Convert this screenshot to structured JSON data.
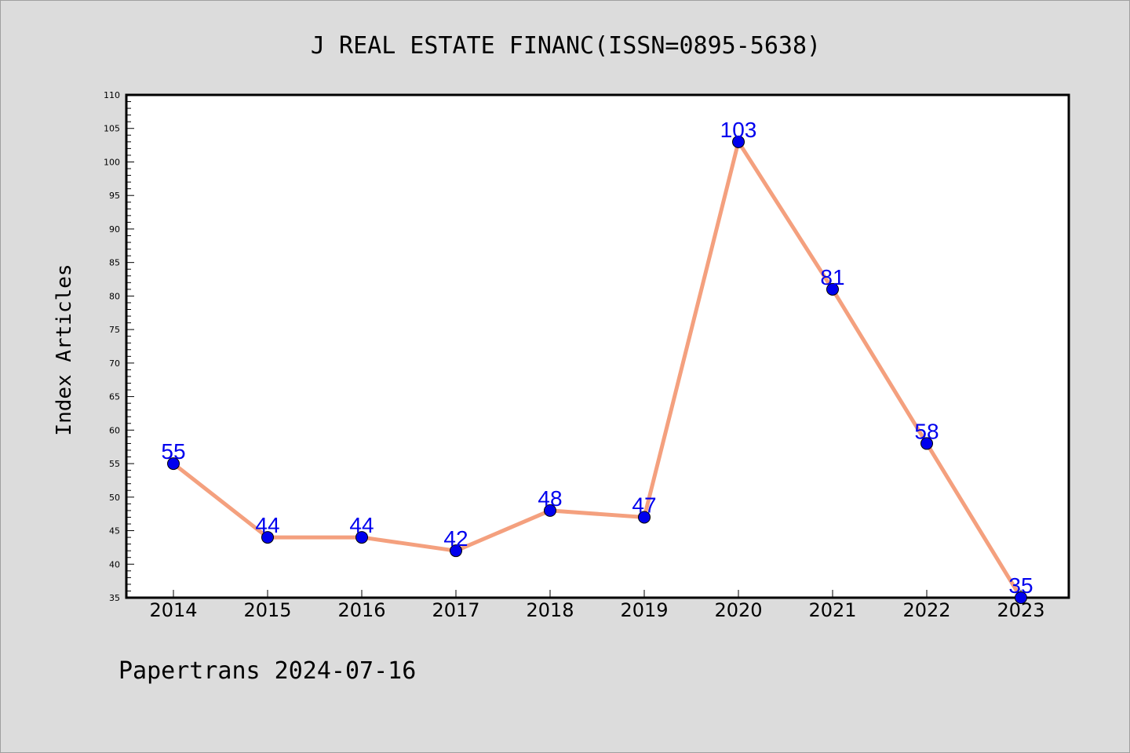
{
  "chart_data": {
    "type": "line",
    "title": "J REAL ESTATE FINANC(ISSN=0895-5638)",
    "xlabel": "",
    "ylabel": "Index Articles",
    "categories": [
      "2014",
      "2015",
      "2016",
      "2017",
      "2018",
      "2019",
      "2020",
      "2021",
      "2022",
      "2023"
    ],
    "values": [
      55,
      44,
      44,
      42,
      48,
      47,
      103,
      81,
      58,
      35
    ],
    "ylim": [
      35,
      110
    ],
    "yticks": [
      35,
      40,
      45,
      50,
      55,
      60,
      65,
      70,
      75,
      80,
      85,
      90,
      95,
      100,
      105,
      110
    ],
    "grid": false,
    "legend": "none",
    "colors": {
      "line": "#f4a07e",
      "marker": "#0000ee",
      "label": "#0000ee",
      "background": "#dcdcdc",
      "plot_background": "#ffffff"
    }
  },
  "footer": "Papertrans 2024-07-16"
}
